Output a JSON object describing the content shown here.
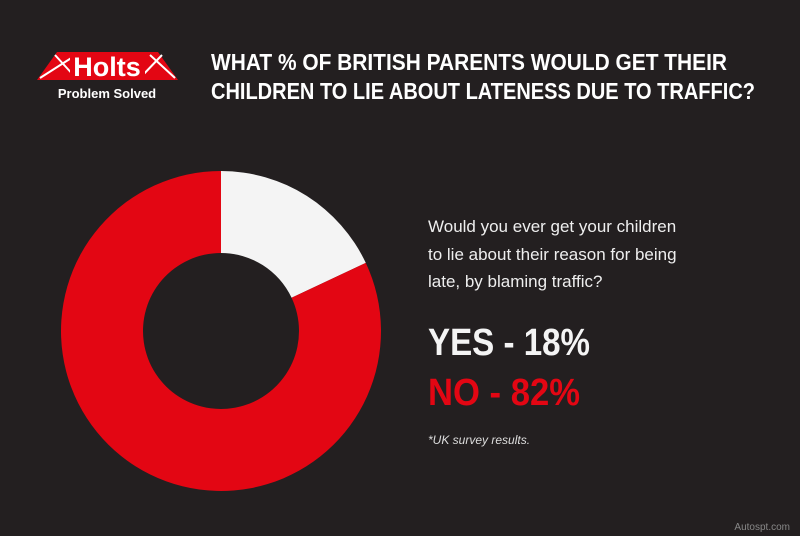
{
  "header": {
    "brand": "Holts",
    "tagline": "Problem Solved",
    "watermark": "Autospt.com"
  },
  "chart_data": {
    "type": "donut",
    "title": [
      "WHAT % OF BRITISH PARENTS WOULD GET THEIR",
      "CHILDREN TO LIE ABOUT LATENESS DUE TO TRAFFIC?"
    ],
    "question": [
      "Would you ever get your children",
      "to lie about their reason for being",
      "late, by blaming traffic?"
    ],
    "values": [
      18,
      82
    ],
    "value_labels": [
      "YES - 18%",
      "NO - 82%"
    ],
    "colors": [
      "#f4f4f4",
      "#e30613"
    ],
    "note": "*UK survey results."
  }
}
